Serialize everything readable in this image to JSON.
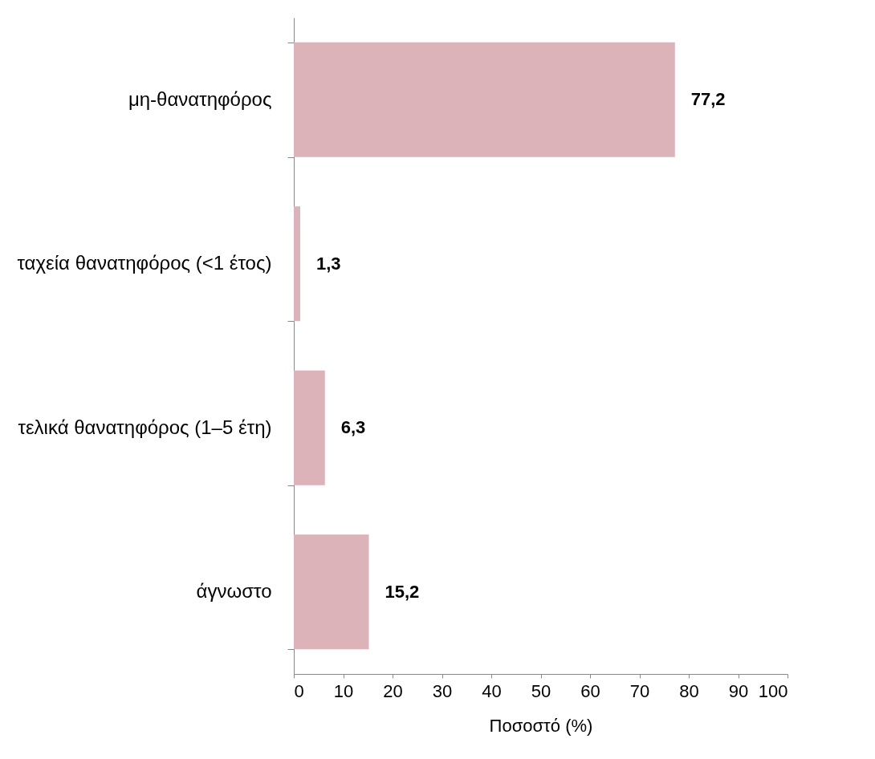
{
  "chart_data": {
    "type": "bar",
    "orientation": "horizontal",
    "xlabel": "Ποσοστό (%)",
    "categories": [
      "μη-θανατηφόρος",
      "ταχεία θανατηφόρος (<1 έτος)",
      "τελικά θανατηφόρος (1–5 έτη)",
      "άγνωστο"
    ],
    "values": [
      77.2,
      1.3,
      6.3,
      15.2
    ],
    "value_labels": [
      "77,2",
      "1,3",
      "6,3",
      "15,2"
    ],
    "color": "#dbb3b9",
    "xlim": [
      0,
      100
    ],
    "xticks": [
      0,
      10,
      20,
      30,
      40,
      50,
      60,
      70,
      80,
      90,
      100
    ],
    "grid": false
  }
}
